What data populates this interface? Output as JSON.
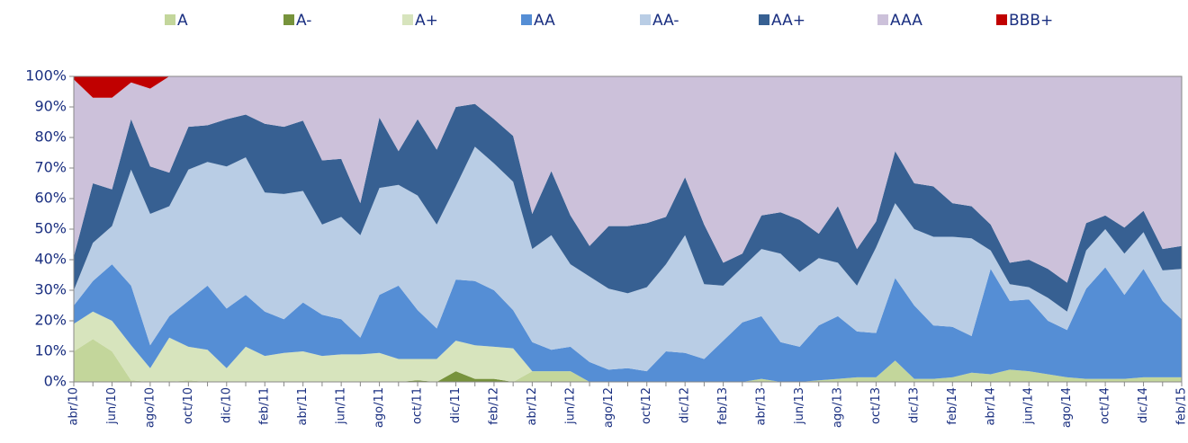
{
  "chart_data": {
    "type": "stacked_area",
    "categories": [
      "abr/10",
      null,
      "jun/10",
      null,
      "ago/10",
      null,
      "oct/10",
      null,
      "dic/10",
      null,
      "feb/11",
      null,
      "abr/11",
      null,
      "jun/11",
      null,
      "ago/11",
      null,
      "oct/11",
      null,
      "dic/11",
      null,
      "feb/12",
      null,
      "abr/12",
      null,
      "jun/12",
      null,
      "ago/12",
      null,
      "oct/12",
      null,
      "dic/12",
      null,
      "feb/13",
      null,
      "abr/13",
      null,
      "jun/13",
      null,
      "ago/13",
      null,
      "oct/13",
      null,
      "dic/13",
      null,
      "feb/14",
      null,
      "abr/14",
      null,
      "jun/14",
      null,
      "ago/14",
      null,
      "oct/14",
      null,
      "dic/14",
      null,
      "feb/15"
    ],
    "series": [
      {
        "name": "A",
        "color": "#c3d69b",
        "values": [
          10,
          14,
          10,
          0.5,
          0,
          0,
          0.5,
          0,
          0,
          0,
          0,
          0,
          0,
          0,
          0,
          0,
          0,
          0,
          0,
          0,
          0,
          0,
          0,
          0,
          3.5,
          3.5,
          3.5,
          0,
          0,
          0,
          0,
          0,
          0,
          0,
          0,
          0,
          1,
          0,
          0,
          0.5,
          1,
          1.5,
          1.5,
          7,
          1,
          1,
          1.5,
          3,
          2.5,
          4,
          3.5,
          2.5,
          1.5,
          1,
          1,
          1,
          1.5,
          1.5,
          1.5
        ]
      },
      {
        "name": "A-",
        "color": "#77933c",
        "values": [
          0,
          0,
          0,
          0,
          0,
          0,
          0,
          0,
          0,
          0,
          0,
          0,
          0,
          0,
          0,
          0,
          0,
          0,
          0.5,
          0,
          3.5,
          1,
          1,
          0,
          0,
          0,
          0,
          0,
          0,
          0,
          0,
          0,
          0,
          0,
          0,
          0,
          0,
          0,
          0,
          0,
          0,
          0,
          0,
          0,
          0,
          0,
          0,
          0,
          0,
          0,
          0,
          0,
          0,
          0,
          0,
          0,
          0,
          0,
          0
        ]
      },
      {
        "name": "A+",
        "color": "#d7e4bd",
        "values": [
          9,
          9,
          10,
          11.5,
          4.5,
          14.5,
          11,
          10.5,
          4.5,
          11.5,
          8.5,
          9.5,
          10,
          8.5,
          9,
          9,
          9.5,
          7.5,
          7,
          7.5,
          10,
          11,
          10.5,
          11,
          0,
          0,
          0,
          0,
          0,
          0,
          0,
          0,
          0,
          0,
          0,
          0,
          0,
          0,
          0,
          0,
          0,
          0,
          0,
          0,
          0,
          0,
          0,
          0,
          0,
          0,
          0,
          0,
          0,
          0,
          0,
          0,
          0,
          0,
          0
        ]
      },
      {
        "name": "AA",
        "color": "#558ed5",
        "values": [
          6,
          10,
          18.5,
          19.5,
          7.5,
          7,
          15,
          21,
          19.5,
          17,
          14.5,
          11,
          16,
          13.5,
          11.5,
          5.5,
          19,
          24,
          16,
          10,
          20,
          21,
          18.5,
          12.5,
          9.5,
          7,
          8,
          6.5,
          4,
          4.5,
          3.5,
          10,
          9.5,
          7.5,
          13.5,
          19.5,
          20.5,
          13,
          11.5,
          18,
          20.5,
          15,
          14.5,
          27,
          24,
          17.5,
          16.5,
          12,
          34.5,
          22.5,
          23.5,
          17.5,
          15.5,
          29.5,
          36.5,
          27.5,
          35.5,
          25,
          19
        ]
      },
      {
        "name": "AA-",
        "color": "#b9cde5",
        "values": [
          5,
          12.5,
          12.5,
          38,
          43,
          36,
          43,
          40.5,
          46.5,
          45,
          39,
          41,
          36.5,
          29.5,
          33.5,
          33.5,
          35,
          33,
          37.5,
          34,
          30.5,
          44,
          41.5,
          42,
          30.5,
          37.5,
          27,
          28,
          26.5,
          24.5,
          27.5,
          28.5,
          38.5,
          24.5,
          18,
          18,
          22,
          29,
          24.5,
          22,
          17.5,
          15,
          28,
          24.5,
          25,
          29,
          29.5,
          32,
          6,
          5.5,
          4,
          7.5,
          6,
          12.5,
          12.5,
          13.5,
          12,
          10,
          16.5
        ]
      },
      {
        "name": "AA+",
        "color": "#376092",
        "values": [
          11,
          19.5,
          12,
          16.5,
          15.5,
          11,
          14,
          12,
          15.5,
          14,
          22.5,
          22,
          23,
          21,
          19,
          10.5,
          23,
          11,
          25,
          24.5,
          26,
          14,
          14.5,
          15,
          11.5,
          21,
          16,
          10,
          20.5,
          22,
          21,
          15.5,
          19,
          19.5,
          7.5,
          4.5,
          11,
          13.5,
          17,
          8,
          18.5,
          12,
          8.5,
          17,
          15,
          16.5,
          11,
          10.5,
          8.5,
          7,
          9,
          9.5,
          9.5,
          9,
          4.5,
          8.5,
          7,
          7,
          7.5
        ]
      },
      {
        "name": "AAA",
        "color": "#ccc1da",
        "values": [
          58,
          28,
          30,
          12,
          25.5,
          31.5,
          16.5,
          16,
          14,
          12.5,
          15.5,
          16.5,
          14.5,
          27.5,
          27,
          41.5,
          13.5,
          24.5,
          14,
          24,
          10,
          9,
          14,
          19.5,
          45,
          31,
          45.5,
          55.5,
          49,
          49,
          48,
          46,
          33,
          48.5,
          61,
          58,
          45.5,
          44.5,
          47,
          51.5,
          42.5,
          56.5,
          47.5,
          24.5,
          35,
          36,
          41.5,
          42.5,
          48.5,
          61,
          60,
          63,
          67.5,
          48,
          45.5,
          49.5,
          44,
          56.5,
          55.5
        ]
      },
      {
        "name": "BBB+",
        "color": "#c00000",
        "values": [
          1,
          7,
          7,
          2,
          4,
          0,
          0,
          0,
          0,
          0,
          0,
          0,
          0,
          0,
          0,
          0,
          0,
          0,
          0,
          0,
          0,
          0,
          0,
          0,
          0,
          0,
          0,
          0,
          0,
          0,
          0,
          0,
          0,
          0,
          0,
          0,
          0,
          0,
          0,
          0,
          0,
          0,
          0,
          0,
          0,
          0,
          0,
          0,
          0,
          0,
          0,
          0,
          0,
          0,
          0,
          0,
          0,
          0,
          0
        ]
      }
    ],
    "ylim": [
      0,
      100
    ],
    "yticks": [
      {
        "value": 0,
        "label": "0%"
      },
      {
        "value": 10,
        "label": "10%"
      },
      {
        "value": 20,
        "label": "20%"
      },
      {
        "value": 30,
        "label": "30%"
      },
      {
        "value": 40,
        "label": "40%"
      },
      {
        "value": 50,
        "label": "50%"
      },
      {
        "value": 60,
        "label": "60%"
      },
      {
        "value": 70,
        "label": "70%"
      },
      {
        "value": 80,
        "label": "80%"
      },
      {
        "value": 90,
        "label": "90%"
      },
      {
        "value": 100,
        "label": "100%"
      }
    ],
    "legend": "top"
  }
}
